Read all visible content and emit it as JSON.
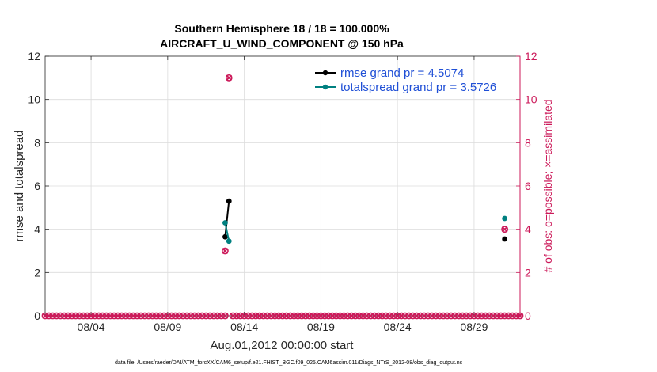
{
  "chart_data": {
    "type": "line",
    "title": "Southern Hemisphere 18 / 18 = 100.000%",
    "subtitle": "AIRCRAFT_U_WIND_COMPONENT @ 150 hPa",
    "xlabel": "Aug.01,2012 00:00:00 start",
    "ylabel": "rmse and totalspread",
    "ylabel_right": "# of obs: o=possible; ×=assimilated",
    "xlim": [
      0,
      31
    ],
    "ylim": [
      0,
      12
    ],
    "ylim_right": [
      0,
      12
    ],
    "x_tick_values": [
      3,
      8,
      13,
      18,
      23,
      28
    ],
    "x_tick_labels": [
      "08/04",
      "08/09",
      "08/14",
      "08/19",
      "08/24",
      "08/29"
    ],
    "y_ticks": [
      0,
      2,
      4,
      6,
      8,
      10,
      12
    ],
    "y_ticks_right": [
      0,
      2,
      4,
      6,
      8,
      10,
      12
    ],
    "grid": true,
    "legend_position": "top-right",
    "series": [
      {
        "name": "rmse grand pr = 4.5074",
        "color": "#000000",
        "segments": [
          [
            {
              "x": 11.75,
              "y": 3.65
            },
            {
              "x": 12.0,
              "y": 5.3
            }
          ],
          [
            {
              "x": 30.0,
              "y": 3.55
            }
          ]
        ]
      },
      {
        "name": "totalspread grand pr = 3.5726",
        "color": "#008080",
        "segments": [
          [
            {
              "x": 11.75,
              "y": 4.3
            },
            {
              "x": 12.0,
              "y": 3.45
            }
          ],
          [
            {
              "x": 30.0,
              "y": 4.5
            }
          ]
        ]
      }
    ],
    "obs_count": {
      "color": "#cc1a5a",
      "zero_marker_spacing": 0.25,
      "zero_gap": [
        11.8,
        12.2
      ],
      "possible": [
        {
          "x": 11.75,
          "y": 3
        },
        {
          "x": 12.0,
          "y": 11
        },
        {
          "x": 30.0,
          "y": 4
        }
      ],
      "assimilated": [
        {
          "x": 11.75,
          "y": 3
        },
        {
          "x": 12.0,
          "y": 11
        },
        {
          "x": 30.0,
          "y": 4
        }
      ]
    },
    "footnote": "data file: /Users/raeder/DAI/ATM_forcXX/CAM6_setup/f.e21.FHIST_BGC.f09_025.CAM6assim.011/Diags_NTrS_2012-08/obs_diag_output.nc"
  }
}
